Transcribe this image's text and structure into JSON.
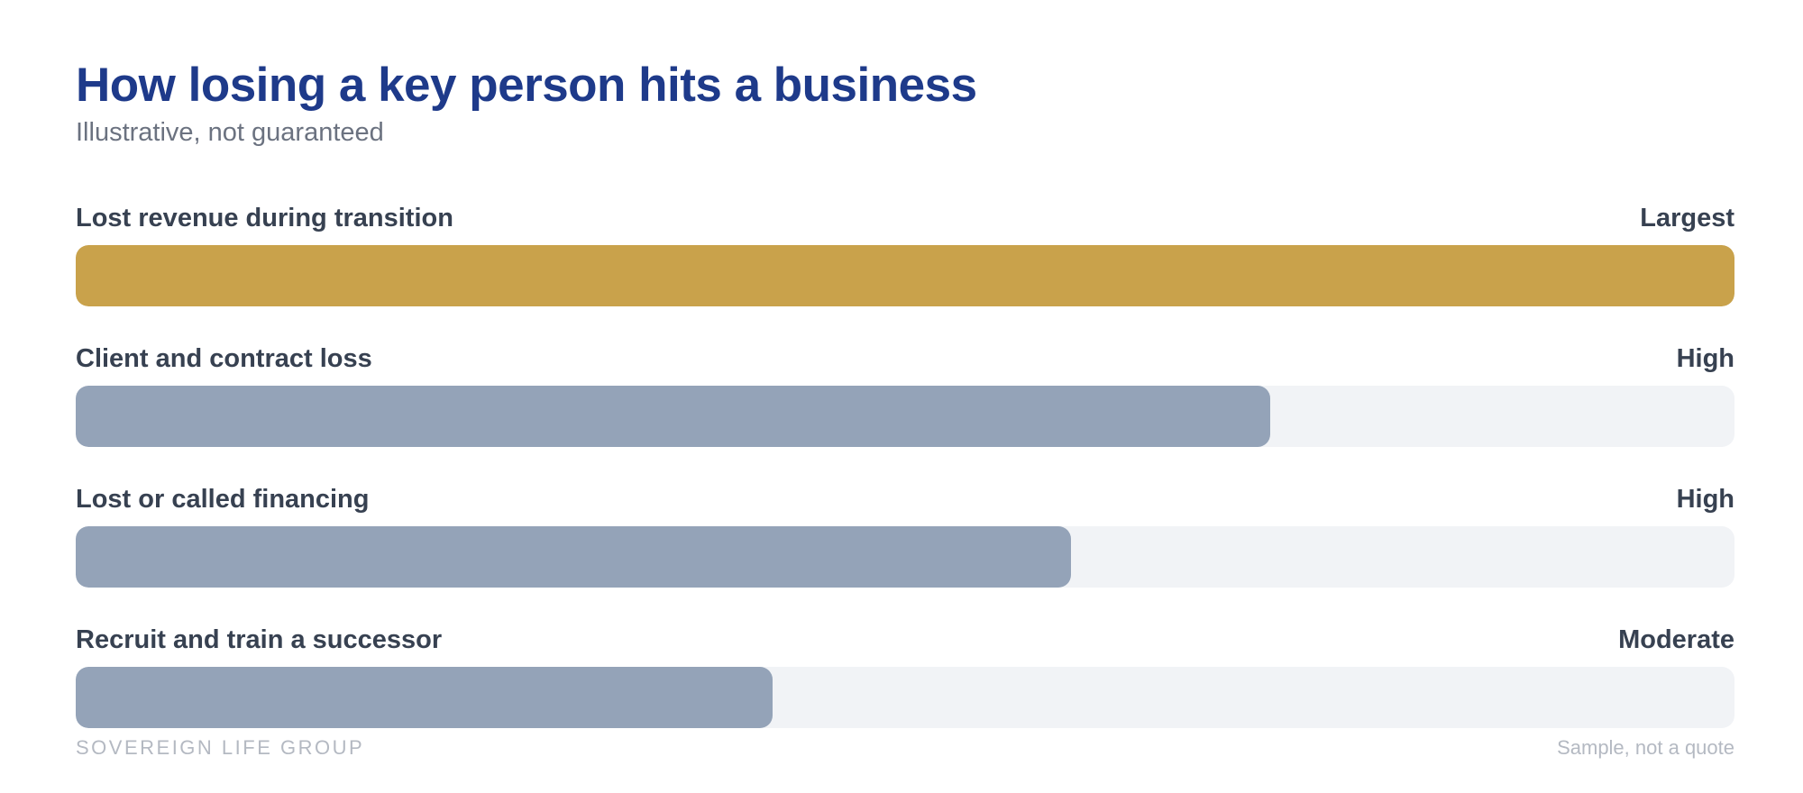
{
  "chart_data": {
    "type": "bar",
    "orientation": "horizontal",
    "title": "How losing a key person hits a business",
    "subtitle": "Illustrative, not guaranteed",
    "categories": [
      "Lost revenue during transition",
      "Client and contract loss",
      "Lost or called financing",
      "Recruit and train a successor"
    ],
    "value_labels": [
      "Largest",
      "High",
      "High",
      "Moderate"
    ],
    "values": [
      1.0,
      0.72,
      0.6,
      0.42
    ],
    "xlim": [
      0,
      1
    ],
    "grid": false,
    "legend": "none",
    "colors": {
      "highlight": "#c9a24b",
      "bar": "#94a3b8",
      "track": "#f1f3f6",
      "title": "#1e3a8a"
    }
  },
  "footer": {
    "brand": "SOVEREIGN LIFE GROUP",
    "note": "Sample, not a quote"
  }
}
